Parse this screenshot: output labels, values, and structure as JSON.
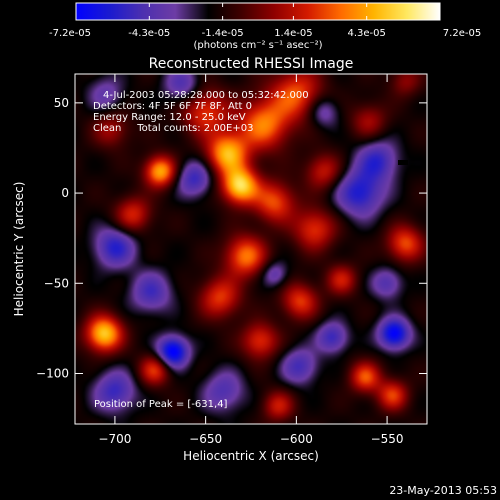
{
  "chart_data": {
    "type": "heatmap",
    "title": "Reconstructed RHESSI Image",
    "xlabel": "Heliocentric X (arcsec)",
    "ylabel": "Heliocentric Y (arcsec)",
    "xlim": [
      -722,
      -528
    ],
    "ylim": [
      -128,
      66
    ],
    "x_ticks": [
      -700,
      -650,
      -600,
      -550
    ],
    "y_ticks": [
      -100,
      -50,
      0,
      50
    ],
    "colorbar": {
      "min": -7.2e-05,
      "max": 7.2e-05,
      "tick_values": [
        -7.2e-05,
        -4.3e-05,
        -1.4e-05,
        1.4e-05,
        4.3e-05,
        7.2e-05
      ],
      "tick_labels": [
        "-7.2e-05",
        "-4.3e-05",
        "-1.4e-05",
        "1.4e-05",
        "4.3e-05",
        "7.2e-05"
      ],
      "unit_label": "(photons cm⁻² s⁻¹ asec⁻²)",
      "colors": [
        "#0000ff",
        "#1a1ad0",
        "#4b2fb0",
        "#6d3ca5",
        "#000000",
        "#400000",
        "#900000",
        "#d31a00",
        "#ff6a00",
        "#ffb400",
        "#ffe860",
        "#ffffff"
      ]
    },
    "info_lines": [
      "4-Jul-2003 05:28:28.000 to 05:32:42.000",
      "Detectors: 4F 5F 6F 7F 8F, Att 0",
      "Energy Range: 12.0 - 25.0 keV",
      "Clean     Total counts: 2.00E+03"
    ],
    "peak_label": "Position of Peak = [-631,4]",
    "timestamp": "23-May-2013 05:53",
    "sources": [
      {
        "x": -631,
        "y": 4,
        "v": 1.0,
        "s": 7
      },
      {
        "x": -638,
        "y": 22,
        "v": 0.85,
        "s": 8
      },
      {
        "x": -618,
        "y": 38,
        "v": 0.7,
        "s": 10
      },
      {
        "x": -600,
        "y": 55,
        "v": 0.6,
        "s": 10
      },
      {
        "x": -650,
        "y": 45,
        "v": 0.55,
        "s": 9
      },
      {
        "x": -675,
        "y": 12,
        "v": 0.85,
        "s": 6
      },
      {
        "x": -690,
        "y": -12,
        "v": 0.5,
        "s": 7
      },
      {
        "x": -612,
        "y": -5,
        "v": 0.6,
        "s": 8
      },
      {
        "x": -590,
        "y": -20,
        "v": 0.55,
        "s": 8
      },
      {
        "x": -628,
        "y": -35,
        "v": 0.7,
        "s": 8
      },
      {
        "x": -642,
        "y": -58,
        "v": 0.55,
        "s": 8
      },
      {
        "x": -706,
        "y": -78,
        "v": 0.95,
        "s": 7
      },
      {
        "x": -678,
        "y": -98,
        "v": 0.55,
        "s": 6
      },
      {
        "x": -620,
        "y": -82,
        "v": 0.55,
        "s": 7
      },
      {
        "x": -598,
        "y": -60,
        "v": 0.55,
        "s": 7
      },
      {
        "x": -575,
        "y": -48,
        "v": 0.45,
        "s": 6
      },
      {
        "x": -562,
        "y": -102,
        "v": 0.6,
        "s": 6
      },
      {
        "x": -540,
        "y": -28,
        "v": 0.6,
        "s": 7
      },
      {
        "x": -547,
        "y": -112,
        "v": 0.55,
        "s": 6
      },
      {
        "x": -610,
        "y": -118,
        "v": 0.45,
        "s": 6
      },
      {
        "x": -585,
        "y": 12,
        "v": 0.45,
        "s": 7
      },
      {
        "x": -560,
        "y": 40,
        "v": 0.35,
        "s": 7
      },
      {
        "x": -702,
        "y": 35,
        "v": 0.35,
        "s": 7
      },
      {
        "x": -540,
        "y": 62,
        "v": 0.3,
        "s": 6
      },
      {
        "x": -700,
        "y": -30,
        "v": -0.55,
        "s": 8
      },
      {
        "x": -680,
        "y": -55,
        "v": -0.45,
        "s": 8
      },
      {
        "x": -668,
        "y": -88,
        "v": -0.85,
        "s": 6
      },
      {
        "x": -656,
        "y": 8,
        "v": -0.5,
        "s": 7
      },
      {
        "x": -565,
        "y": 0,
        "v": -0.6,
        "s": 9
      },
      {
        "x": -555,
        "y": 18,
        "v": -0.5,
        "s": 8
      },
      {
        "x": -546,
        "y": -78,
        "v": -0.8,
        "s": 6
      },
      {
        "x": -598,
        "y": -96,
        "v": -0.45,
        "s": 7
      },
      {
        "x": -580,
        "y": -80,
        "v": -0.5,
        "s": 6
      },
      {
        "x": -700,
        "y": -110,
        "v": -0.5,
        "s": 8
      },
      {
        "x": -640,
        "y": -110,
        "v": -0.4,
        "s": 8
      },
      {
        "x": -663,
        "y": 60,
        "v": -0.4,
        "s": 7
      },
      {
        "x": -705,
        "y": 55,
        "v": -0.3,
        "s": 7
      },
      {
        "x": -612,
        "y": -45,
        "v": -0.35,
        "s": 5
      },
      {
        "x": -550,
        "y": -50,
        "v": -0.4,
        "s": 6
      },
      {
        "x": -585,
        "y": 45,
        "v": -0.35,
        "s": 6
      }
    ]
  }
}
